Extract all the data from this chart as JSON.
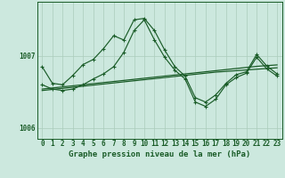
{
  "title": "Graphe pression niveau de la mer (hPa)",
  "background_color": "#cce8de",
  "plot_bg_color": "#cce8de",
  "grid_color": "#aaccbb",
  "line_color": "#1a5c28",
  "hours": [
    0,
    1,
    2,
    3,
    4,
    5,
    6,
    7,
    8,
    9,
    10,
    11,
    12,
    13,
    14,
    15,
    16,
    17,
    18,
    19,
    20,
    21,
    22,
    23
  ],
  "main_y": [
    1006.85,
    1006.62,
    1006.6,
    1006.73,
    1006.88,
    1006.95,
    1007.1,
    1007.28,
    1007.22,
    1007.5,
    1007.52,
    1007.35,
    1007.08,
    1006.85,
    1006.72,
    1006.42,
    1006.36,
    1006.46,
    1006.62,
    1006.74,
    1006.78,
    1007.02,
    1006.86,
    1006.75
  ],
  "sec_y": [
    1006.6,
    1006.54,
    1006.52,
    1006.54,
    1006.6,
    1006.68,
    1006.75,
    1006.85,
    1007.05,
    1007.35,
    1007.5,
    1007.22,
    1006.98,
    1006.8,
    1006.68,
    1006.36,
    1006.3,
    1006.4,
    1006.6,
    1006.7,
    1006.76,
    1006.98,
    1006.82,
    1006.72
  ],
  "smooth1": [
    1006.54,
    1006.555,
    1006.57,
    1006.585,
    1006.6,
    1006.615,
    1006.63,
    1006.645,
    1006.66,
    1006.675,
    1006.69,
    1006.705,
    1006.72,
    1006.735,
    1006.75,
    1006.765,
    1006.78,
    1006.795,
    1006.81,
    1006.825,
    1006.84,
    1006.855,
    1006.865,
    1006.875
  ],
  "smooth2": [
    1006.52,
    1006.535,
    1006.55,
    1006.565,
    1006.58,
    1006.595,
    1006.61,
    1006.625,
    1006.64,
    1006.655,
    1006.67,
    1006.685,
    1006.7,
    1006.715,
    1006.73,
    1006.745,
    1006.76,
    1006.775,
    1006.785,
    1006.795,
    1006.805,
    1006.815,
    1006.825,
    1006.835
  ],
  "ylim": [
    1005.85,
    1007.75
  ],
  "yticks": [
    1006.0,
    1007.0
  ],
  "ytick_labels": [
    "1006",
    "1007"
  ],
  "xlim": [
    -0.5,
    23.5
  ]
}
